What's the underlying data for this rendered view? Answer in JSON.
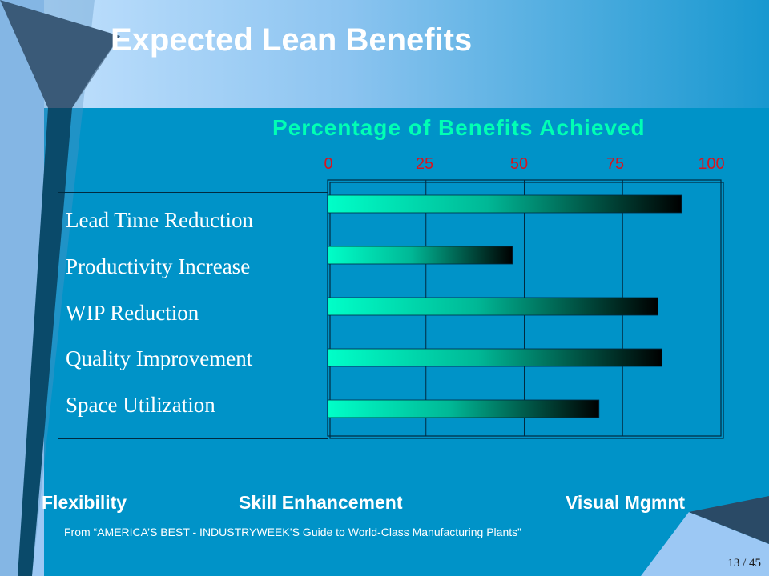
{
  "slide": {
    "title": "Expected Lean Benefits",
    "page_number": "13 / 45"
  },
  "chart_data": {
    "type": "bar",
    "orientation": "horizontal",
    "title": "Percentage of Benefits Achieved",
    "categories": [
      "Lead Time Reduction",
      "Productivity Increase",
      "WIP Reduction",
      "Quality Improvement",
      "Space Utilization"
    ],
    "values": [
      90,
      47,
      84,
      85,
      69
    ],
    "xlim": [
      0,
      100
    ],
    "ticks": [
      "0",
      "25",
      "50",
      "75",
      "100"
    ],
    "xlabel": "",
    "ylabel": "",
    "grid": true,
    "colors": {
      "bar_start": "#00ffc8",
      "bar_end": "#000000",
      "title": "#00ffb4",
      "ticks": "#d8141e"
    }
  },
  "bottom_words": [
    "Flexibility",
    "Skill Enhancement",
    "Visual Mgmnt"
  ],
  "source": "From “AMERICA’S BEST -  INDUSTRYWEEK’S Guide to World-Class Manufacturing Plants”",
  "colors": {
    "background": "#0093c8",
    "title_text": "#ffffff"
  }
}
